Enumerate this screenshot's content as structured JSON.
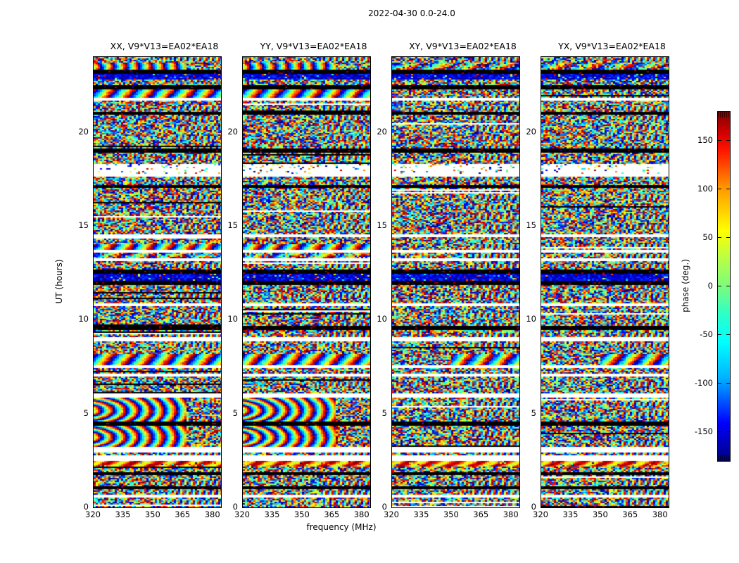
{
  "figure": {
    "title": "2022-04-30 0.0-24.0",
    "background": "#ffffff",
    "text_color": "#000000"
  },
  "chart_data": {
    "type": "heatmap",
    "title": "2022-04-30 0.0-24.0",
    "subplot_count": 4,
    "panels": [
      {
        "pol": "XX",
        "title": "XX, V9*V13=EA02*EA18"
      },
      {
        "pol": "YY",
        "title": "YY, V9*V13=EA02*EA18"
      },
      {
        "pol": "XY",
        "title": "XY, V9*V13=EA02*EA18"
      },
      {
        "pol": "YX",
        "title": "YX, V9*V13=EA02*EA18"
      }
    ],
    "xlabel": "frequency (MHz)",
    "ylabel": "UT (hours)",
    "x_range": [
      320,
      384
    ],
    "y_range": [
      0,
      24
    ],
    "x_ticks": [
      320,
      335,
      350,
      365,
      380
    ],
    "y_ticks": [
      0,
      5,
      10,
      15,
      20
    ],
    "grid": false,
    "colorbar": {
      "label": "phase (deg.)",
      "ticks": [
        150,
        100,
        50,
        0,
        -50,
        -100,
        -150
      ],
      "range": [
        -180,
        180
      ],
      "colormap": "jet",
      "tick_side": "left",
      "hatched_end_caps": true
    },
    "description": "Visibility phase vs frequency (320-384 MHz) and UT (0-24 h) for baseline V9*V13=EA02*EA18 on 2022-04-30. Four correlation products XX, YY, XY, YX. Mostly random phase noise with horizontal flagged (white) gaps and black dropout rows common to all panels; coherent rainbow fringe bands and curved fringe arcs appear in XX/YY but are noise-like in the cross-hands XY/YX.",
    "bands": [
      {
        "from": 0.0,
        "to": 0.55,
        "type": "noise"
      },
      {
        "from": 0.55,
        "to": 0.7,
        "type": "white"
      },
      {
        "from": 0.7,
        "to": 0.95,
        "type": "noise"
      },
      {
        "from": 0.95,
        "to": 1.15,
        "type": "black"
      },
      {
        "from": 1.15,
        "to": 1.7,
        "type": "noise"
      },
      {
        "from": 1.7,
        "to": 1.9,
        "type": "black"
      },
      {
        "from": 1.9,
        "to": 2.15,
        "type": "noise"
      },
      {
        "from": 2.15,
        "to": 2.5,
        "type": "fringe-warm"
      },
      {
        "from": 2.5,
        "to": 2.75,
        "type": "white"
      },
      {
        "from": 2.75,
        "to": 2.95,
        "type": "noise"
      },
      {
        "from": 2.95,
        "to": 3.2,
        "type": "white"
      },
      {
        "from": 3.2,
        "to": 4.35,
        "type": "wavy",
        "cross": "noise"
      },
      {
        "from": 4.35,
        "to": 4.55,
        "type": "black"
      },
      {
        "from": 4.55,
        "to": 5.85,
        "type": "wavy",
        "cross": "noise"
      },
      {
        "from": 5.85,
        "to": 6.05,
        "type": "white"
      },
      {
        "from": 6.05,
        "to": 7.0,
        "type": "noise"
      },
      {
        "from": 7.0,
        "to": 7.15,
        "type": "white"
      },
      {
        "from": 7.15,
        "to": 7.45,
        "type": "noise"
      },
      {
        "from": 7.45,
        "to": 7.6,
        "type": "white"
      },
      {
        "from": 7.6,
        "to": 8.15,
        "type": "fringe",
        "cross": "fringe-right"
      },
      {
        "from": 8.15,
        "to": 8.85,
        "type": "noise"
      },
      {
        "from": 8.85,
        "to": 9.05,
        "type": "white"
      },
      {
        "from": 9.05,
        "to": 9.45,
        "type": "noise"
      },
      {
        "from": 9.45,
        "to": 9.65,
        "type": "black"
      },
      {
        "from": 9.65,
        "to": 10.7,
        "type": "noise"
      },
      {
        "from": 10.7,
        "to": 10.9,
        "type": "white"
      },
      {
        "from": 10.9,
        "to": 11.85,
        "type": "noise"
      },
      {
        "from": 11.85,
        "to": 12.05,
        "type": "black"
      },
      {
        "from": 12.05,
        "to": 12.45,
        "type": "dark-noise"
      },
      {
        "from": 12.45,
        "to": 12.65,
        "type": "black"
      },
      {
        "from": 12.65,
        "to": 13.15,
        "type": "noise"
      },
      {
        "from": 13.15,
        "to": 13.3,
        "type": "white"
      },
      {
        "from": 13.3,
        "to": 13.6,
        "type": "fringe-weak",
        "cross": "noise"
      },
      {
        "from": 13.6,
        "to": 13.75,
        "type": "white"
      },
      {
        "from": 13.75,
        "to": 14.05,
        "type": "fringe",
        "cross": "noise"
      },
      {
        "from": 14.05,
        "to": 14.4,
        "type": "noise"
      },
      {
        "from": 14.4,
        "to": 14.55,
        "type": "white"
      },
      {
        "from": 14.55,
        "to": 17.0,
        "type": "noise"
      },
      {
        "from": 17.0,
        "to": 17.2,
        "type": "black"
      },
      {
        "from": 17.2,
        "to": 17.6,
        "type": "noise"
      },
      {
        "from": 17.6,
        "to": 17.8,
        "type": "white"
      },
      {
        "from": 17.8,
        "to": 18.3,
        "type": "white-sparse"
      },
      {
        "from": 18.3,
        "to": 18.9,
        "type": "noise"
      },
      {
        "from": 18.9,
        "to": 19.1,
        "type": "black"
      },
      {
        "from": 19.1,
        "to": 20.9,
        "type": "noise"
      },
      {
        "from": 20.9,
        "to": 21.1,
        "type": "black"
      },
      {
        "from": 21.1,
        "to": 21.7,
        "type": "noise"
      },
      {
        "from": 21.7,
        "to": 21.8,
        "type": "white"
      },
      {
        "from": 21.8,
        "to": 22.3,
        "type": "fringe",
        "cross": "noise"
      },
      {
        "from": 22.3,
        "to": 22.5,
        "type": "black"
      },
      {
        "from": 22.5,
        "to": 22.8,
        "type": "noise"
      },
      {
        "from": 22.8,
        "to": 23.1,
        "type": "dark-noise"
      },
      {
        "from": 23.1,
        "to": 23.3,
        "type": "black"
      },
      {
        "from": 23.3,
        "to": 23.7,
        "type": "wavy",
        "cross": "fringe-weak"
      },
      {
        "from": 23.7,
        "to": 24.01,
        "type": "noise"
      }
    ]
  }
}
